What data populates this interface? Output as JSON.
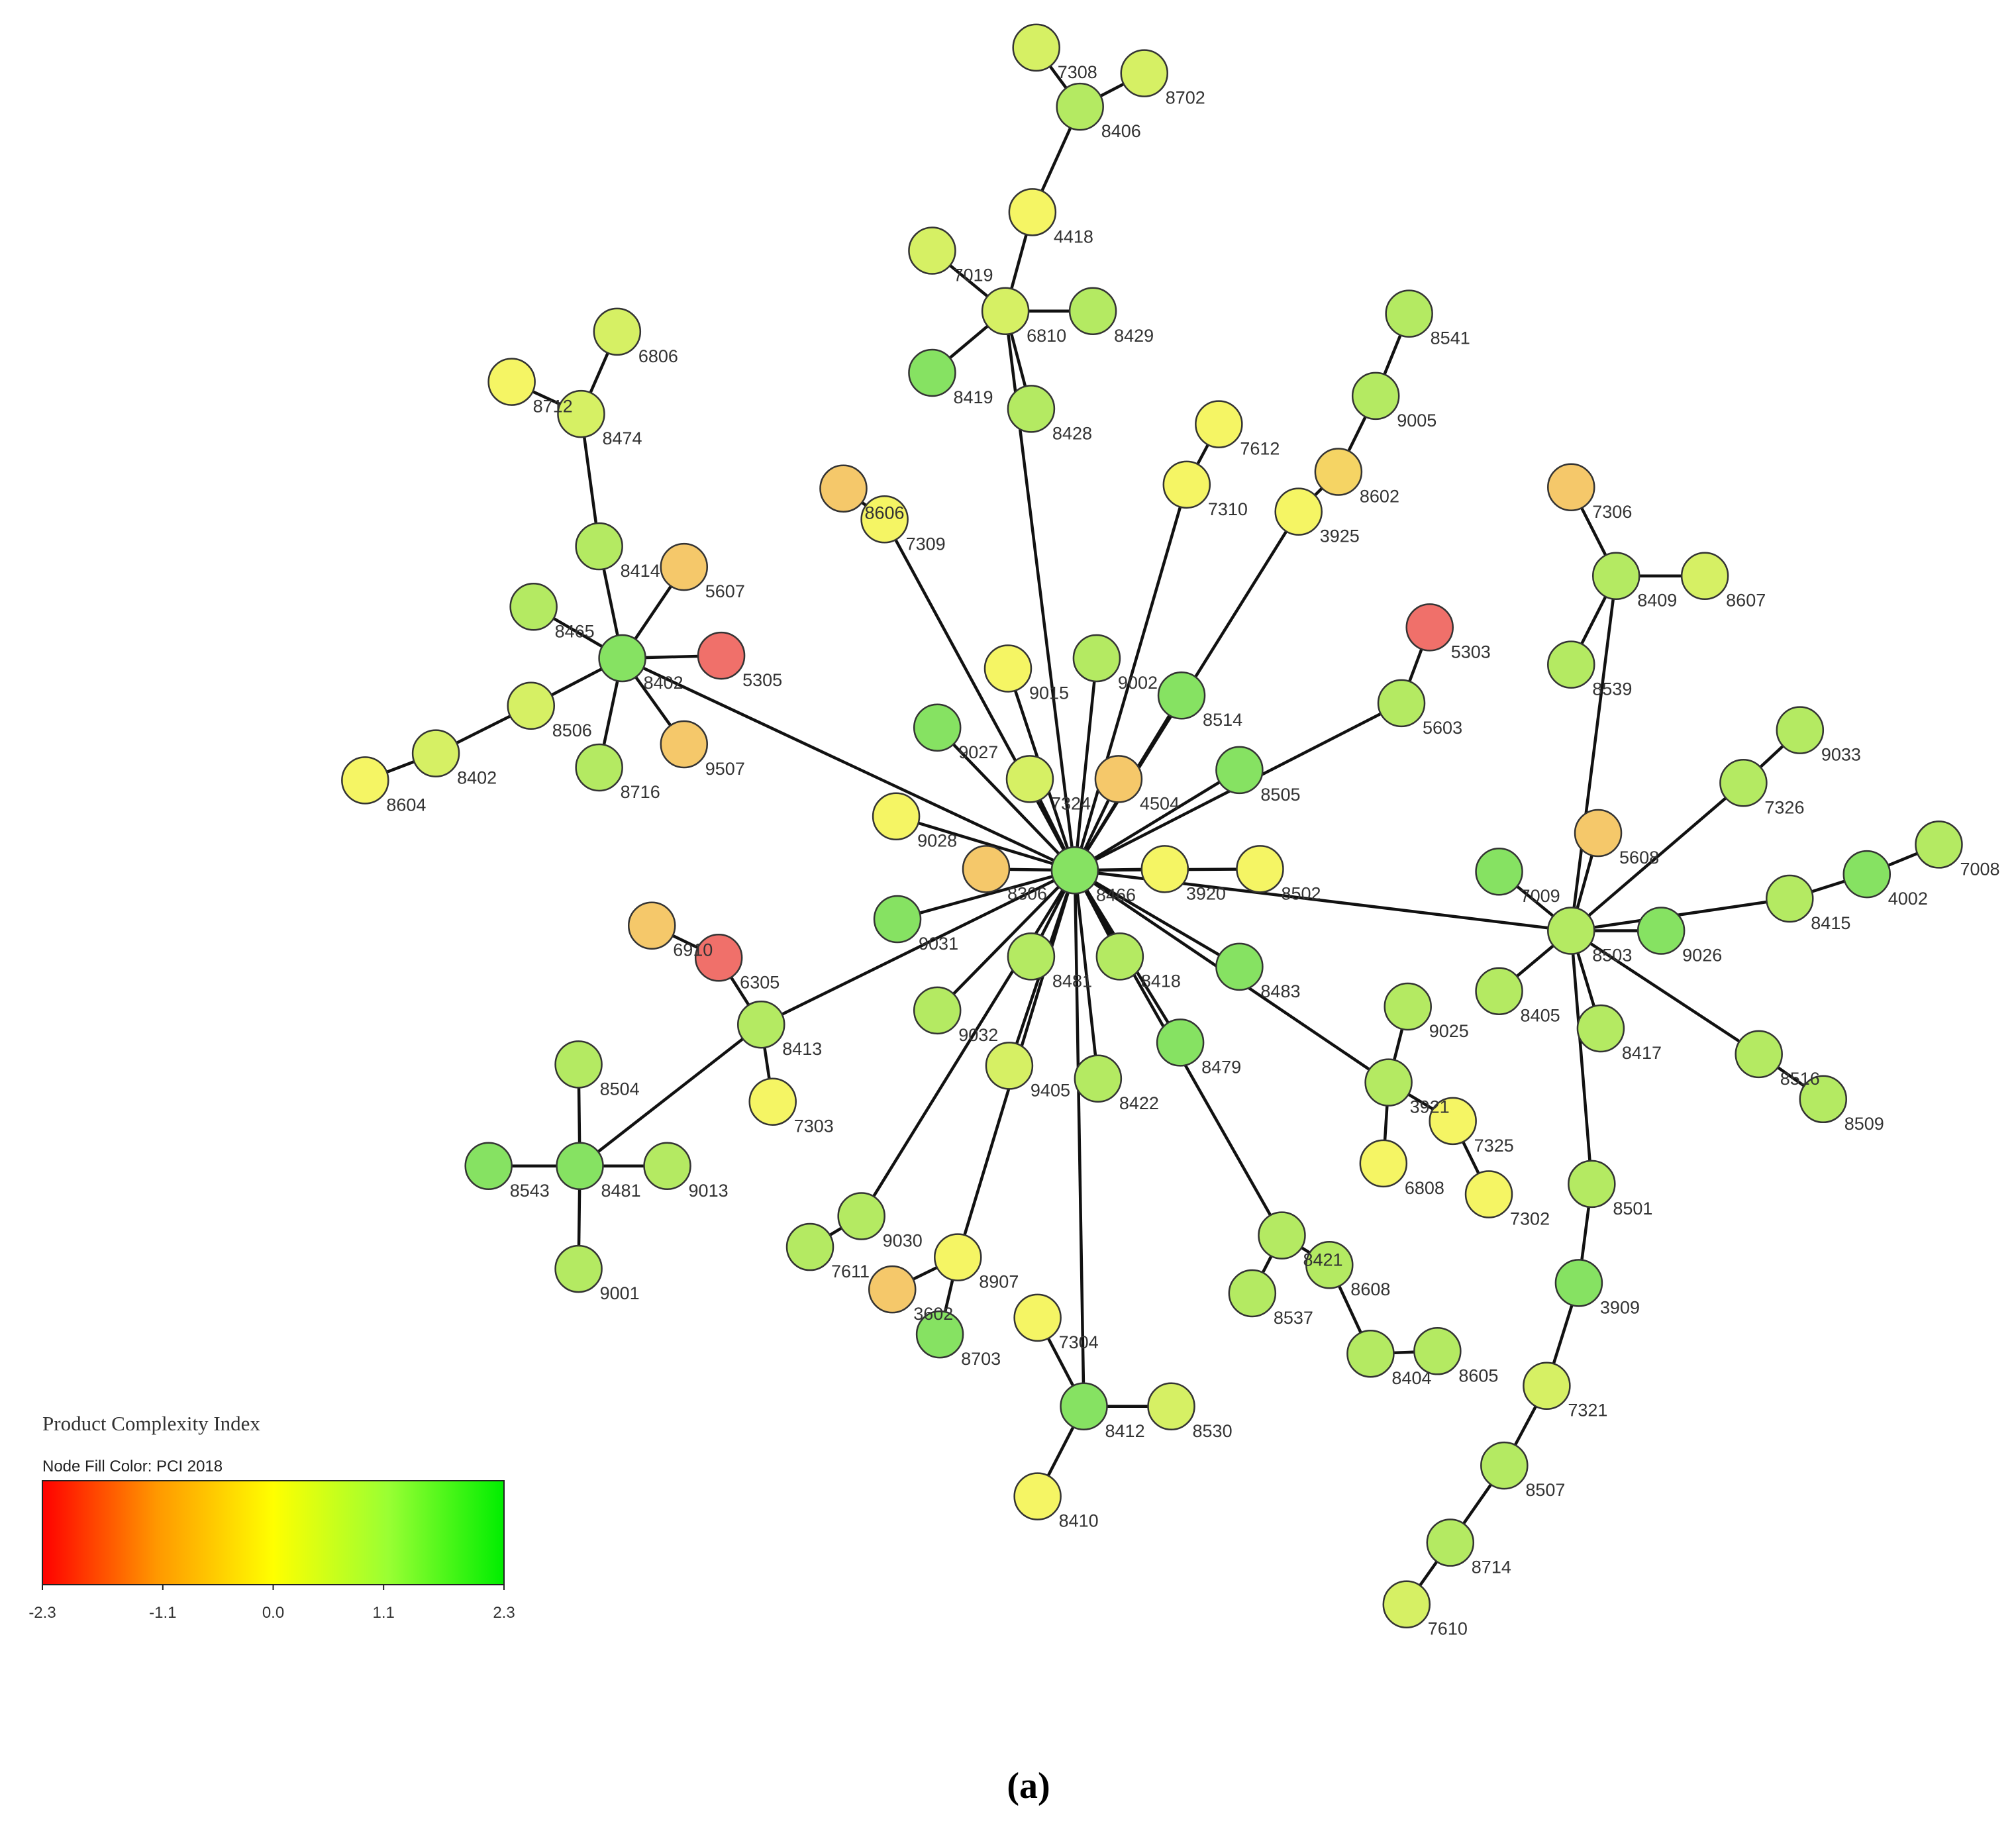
{
  "title": null,
  "nodes": [
    {
      "label": "8466",
      "color": "#86e262"
    },
    {
      "label": "7308",
      "color": "#d6f064"
    },
    {
      "label": "8702",
      "color": "#d6f064"
    },
    {
      "label": "8406",
      "color": "#b4ea62"
    },
    {
      "label": "4418",
      "color": "#f5f564"
    },
    {
      "label": "7019",
      "color": "#d6f064"
    },
    {
      "label": "6810",
      "color": "#d6f064"
    },
    {
      "label": "8429",
      "color": "#b4ea62"
    },
    {
      "label": "8419",
      "color": "#86e262"
    },
    {
      "label": "8428",
      "color": "#b4ea62"
    },
    {
      "label": "6806",
      "color": "#d6f064"
    },
    {
      "label": "8712",
      "color": "#f5f564"
    },
    {
      "label": "8474",
      "color": "#d6f064"
    },
    {
      "label": "8414",
      "color": "#b4ea62"
    },
    {
      "label": "5607",
      "color": "#f5c86a"
    },
    {
      "label": "8465",
      "color": "#b4ea62"
    },
    {
      "label": "8402",
      "color": "#86e262"
    },
    {
      "label": "5305",
      "color": "#f0706a"
    },
    {
      "label": "8506",
      "color": "#d6f064"
    },
    {
      "label": "9507",
      "color": "#f5c86a"
    },
    {
      "label": "8716",
      "color": "#b4ea62"
    },
    {
      "label": "8402",
      "color": "#d6f064"
    },
    {
      "label": "8604",
      "color": "#f5f564"
    },
    {
      "label": "8606",
      "color": "#f5c86a"
    },
    {
      "label": "7309",
      "color": "#f5f564"
    },
    {
      "label": "7612",
      "color": "#f5f564"
    },
    {
      "label": "7310",
      "color": "#f5f564"
    },
    {
      "label": "8541",
      "color": "#b4ea62"
    },
    {
      "label": "9005",
      "color": "#b4ea62"
    },
    {
      "label": "8602",
      "color": "#f5d464"
    },
    {
      "label": "3925",
      "color": "#f5f564"
    },
    {
      "label": "5303",
      "color": "#f0706a"
    },
    {
      "label": "5603",
      "color": "#b4ea62"
    },
    {
      "label": "9015",
      "color": "#f5f564"
    },
    {
      "label": "9002",
      "color": "#b4ea62"
    },
    {
      "label": "8514",
      "color": "#86e262"
    },
    {
      "label": "9027",
      "color": "#86e262"
    },
    {
      "label": "7324",
      "color": "#d6f064"
    },
    {
      "label": "4504",
      "color": "#f5c86a"
    },
    {
      "label": "8505",
      "color": "#86e262"
    },
    {
      "label": "9028",
      "color": "#f5f564"
    },
    {
      "label": "8306",
      "color": "#f5c86a"
    },
    {
      "label": "3920",
      "color": "#f5f564"
    },
    {
      "label": "8502",
      "color": "#f5f564"
    },
    {
      "label": "9031",
      "color": "#86e262"
    },
    {
      "label": "8481",
      "color": "#b4ea62"
    },
    {
      "label": "8418",
      "color": "#b4ea62"
    },
    {
      "label": "8483",
      "color": "#86e262"
    },
    {
      "label": "9032",
      "color": "#b4ea62"
    },
    {
      "label": "9405",
      "color": "#d6f064"
    },
    {
      "label": "8422",
      "color": "#b4ea62"
    },
    {
      "label": "8479",
      "color": "#86e262"
    },
    {
      "label": "6910",
      "color": "#f5c86a"
    },
    {
      "label": "6305",
      "color": "#f0706a"
    },
    {
      "label": "8413",
      "color": "#b4ea62"
    },
    {
      "label": "7303",
      "color": "#f5f564"
    },
    {
      "label": "8504",
      "color": "#b4ea62"
    },
    {
      "label": "8481",
      "color": "#86e262"
    },
    {
      "label": "8543",
      "color": "#86e262"
    },
    {
      "label": "9013",
      "color": "#b4ea62"
    },
    {
      "label": "9001",
      "color": "#b4ea62"
    },
    {
      "label": "9030",
      "color": "#b4ea62"
    },
    {
      "label": "7611",
      "color": "#b4ea62"
    },
    {
      "label": "8907",
      "color": "#f5f564"
    },
    {
      "label": "3602",
      "color": "#f5c86a"
    },
    {
      "label": "8703",
      "color": "#86e262"
    },
    {
      "label": "7304",
      "color": "#f5f564"
    },
    {
      "label": "8412",
      "color": "#86e262"
    },
    {
      "label": "8530",
      "color": "#d6f064"
    },
    {
      "label": "8410",
      "color": "#f5f564"
    },
    {
      "label": "8421",
      "color": "#b4ea62"
    },
    {
      "label": "8537",
      "color": "#b4ea62"
    },
    {
      "label": "8608",
      "color": "#b4ea62"
    },
    {
      "label": "8404",
      "color": "#b4ea62"
    },
    {
      "label": "8605",
      "color": "#b4ea62"
    },
    {
      "label": "9025",
      "color": "#b4ea62"
    },
    {
      "label": "3921",
      "color": "#b4ea62"
    },
    {
      "label": "7325",
      "color": "#f5f564"
    },
    {
      "label": "6808",
      "color": "#f5f564"
    },
    {
      "label": "7302",
      "color": "#f5f564"
    },
    {
      "label": "7306",
      "color": "#f5c86a"
    },
    {
      "label": "8409",
      "color": "#b4ea62"
    },
    {
      "label": "8607",
      "color": "#d6f064"
    },
    {
      "label": "8539",
      "color": "#b4ea62"
    },
    {
      "label": "5608",
      "color": "#f5c86a"
    },
    {
      "label": "7009",
      "color": "#86e262"
    },
    {
      "label": "8503",
      "color": "#b4ea62"
    },
    {
      "label": "9026",
      "color": "#86e262"
    },
    {
      "label": "8405",
      "color": "#b4ea62"
    },
    {
      "label": "8417",
      "color": "#b4ea62"
    },
    {
      "label": "8516",
      "color": "#b4ea62"
    },
    {
      "label": "8509",
      "color": "#b4ea62"
    },
    {
      "label": "9033",
      "color": "#b4ea62"
    },
    {
      "label": "7326",
      "color": "#b4ea62"
    },
    {
      "label": "8415",
      "color": "#b4ea62"
    },
    {
      "label": "4002",
      "color": "#86e262"
    },
    {
      "label": "7008",
      "color": "#b4ea62"
    },
    {
      "label": "8501",
      "color": "#b4ea62"
    },
    {
      "label": "3909",
      "color": "#86e262"
    },
    {
      "label": "7321",
      "color": "#d6f064"
    },
    {
      "label": "8507",
      "color": "#b4ea62"
    },
    {
      "label": "8714",
      "color": "#b4ea62"
    },
    {
      "label": "7610",
      "color": "#d6f064"
    }
  ],
  "edges": [
    [
      0,
      16
    ],
    [
      0,
      24
    ],
    [
      0,
      6
    ],
    [
      0,
      26
    ],
    [
      0,
      30
    ],
    [
      0,
      32
    ],
    [
      0,
      86
    ],
    [
      0,
      54
    ],
    [
      0,
      33
    ],
    [
      0,
      34
    ],
    [
      0,
      35
    ],
    [
      0,
      36
    ],
    [
      0,
      37
    ],
    [
      0,
      38
    ],
    [
      0,
      39
    ],
    [
      0,
      40
    ],
    [
      0,
      41
    ],
    [
      0,
      42
    ],
    [
      0,
      43
    ],
    [
      0,
      44
    ],
    [
      0,
      45
    ],
    [
      0,
      46
    ],
    [
      0,
      47
    ],
    [
      0,
      48
    ],
    [
      0,
      49
    ],
    [
      0,
      50
    ],
    [
      0,
      51
    ],
    [
      0,
      61
    ],
    [
      0,
      63
    ],
    [
      0,
      67
    ],
    [
      0,
      70
    ],
    [
      0,
      76
    ],
    [
      1,
      3
    ],
    [
      2,
      3
    ],
    [
      3,
      4
    ],
    [
      4,
      6
    ],
    [
      5,
      6
    ],
    [
      7,
      6
    ],
    [
      8,
      6
    ],
    [
      9,
      6
    ],
    [
      10,
      12
    ],
    [
      11,
      12
    ],
    [
      12,
      13
    ],
    [
      13,
      16
    ],
    [
      14,
      16
    ],
    [
      15,
      16
    ],
    [
      17,
      16
    ],
    [
      18,
      16
    ],
    [
      19,
      16
    ],
    [
      20,
      16
    ],
    [
      22,
      21
    ],
    [
      21,
      18
    ],
    [
      23,
      24
    ],
    [
      25,
      26
    ],
    [
      27,
      28
    ],
    [
      28,
      29
    ],
    [
      29,
      30
    ],
    [
      31,
      32
    ],
    [
      52,
      53
    ],
    [
      53,
      54
    ],
    [
      54,
      55
    ],
    [
      54,
      57
    ],
    [
      56,
      57
    ],
    [
      58,
      57
    ],
    [
      59,
      57
    ],
    [
      60,
      57
    ],
    [
      62,
      61
    ],
    [
      64,
      63
    ],
    [
      65,
      63
    ],
    [
      66,
      67
    ],
    [
      68,
      67
    ],
    [
      69,
      67
    ],
    [
      71,
      70
    ],
    [
      70,
      72
    ],
    [
      72,
      73
    ],
    [
      73,
      74
    ],
    [
      75,
      76
    ],
    [
      76,
      77
    ],
    [
      76,
      78
    ],
    [
      77,
      79
    ],
    [
      80,
      81
    ],
    [
      82,
      81
    ],
    [
      83,
      81
    ],
    [
      81,
      86
    ],
    [
      84,
      86
    ],
    [
      85,
      86
    ],
    [
      87,
      86
    ],
    [
      88,
      86
    ],
    [
      89,
      86
    ],
    [
      90,
      86
    ],
    [
      90,
      91
    ],
    [
      93,
      86
    ],
    [
      92,
      93
    ],
    [
      86,
      94
    ],
    [
      94,
      95
    ],
    [
      95,
      96
    ],
    [
      86,
      97
    ],
    [
      97,
      98
    ],
    [
      98,
      99
    ],
    [
      99,
      100
    ],
    [
      100,
      101
    ],
    [
      101,
      102
    ]
  ],
  "legend": {
    "title": "Product Complexity Index",
    "subtitle": "Node Fill Color:  PCI 2018",
    "range": [
      -2.3,
      2.3
    ],
    "colors": [
      "#ff0000",
      "#ff9900",
      "#ffff00",
      "#99ff33",
      "#00ee00"
    ],
    "ticks": [
      -2.3,
      -1.1,
      {
        "value": 0,
        "label": "0.0"
      },
      1.1,
      2.3
    ]
  },
  "caption": "(a)"
}
